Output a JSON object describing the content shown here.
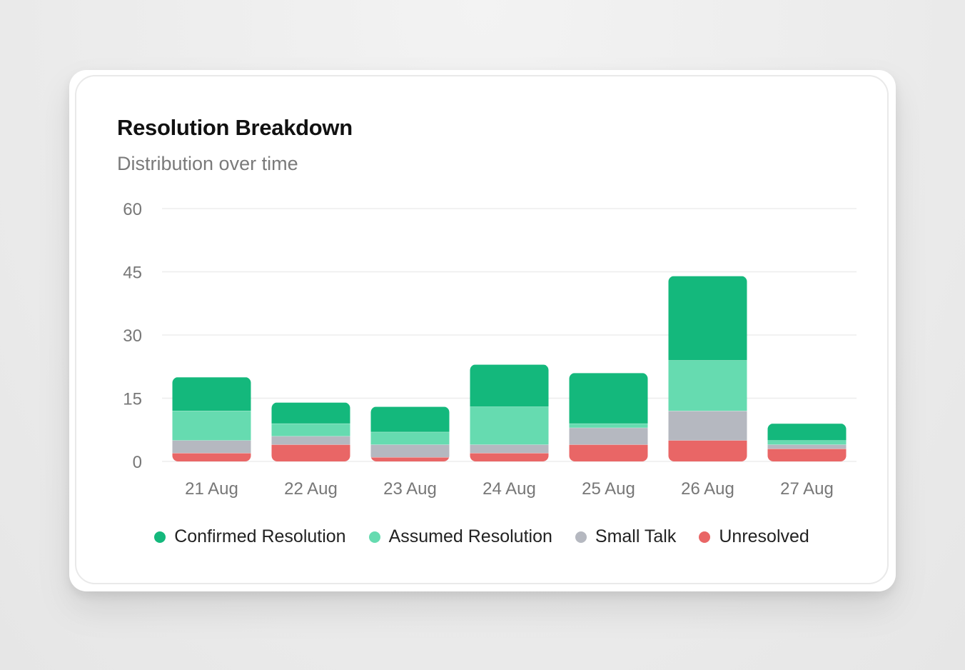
{
  "card": {
    "title": "Resolution Breakdown",
    "subtitle": "Distribution over time"
  },
  "chart_data": {
    "type": "bar",
    "stacked": true,
    "title": "Resolution Breakdown",
    "subtitle": "Distribution over time",
    "categories": [
      "21 Aug",
      "22 Aug",
      "23 Aug",
      "24 Aug",
      "25 Aug",
      "26 Aug",
      "27 Aug"
    ],
    "series": [
      {
        "name": "Unresolved",
        "color": "#e96666",
        "values": [
          2,
          4,
          1,
          2,
          4,
          5,
          3
        ]
      },
      {
        "name": "Small Talk",
        "color": "#b5b8c0",
        "values": [
          3,
          2,
          3,
          2,
          4,
          7,
          1
        ]
      },
      {
        "name": "Assumed Resolution",
        "color": "#66dbb0",
        "values": [
          7,
          3,
          3,
          9,
          1,
          12,
          1
        ]
      },
      {
        "name": "Confirmed Resolution",
        "color": "#14b87c",
        "values": [
          8,
          5,
          6,
          10,
          12,
          20,
          4
        ]
      }
    ],
    "y_ticks": [
      0,
      15,
      30,
      45,
      60
    ],
    "ylim": [
      0,
      60
    ],
    "grid": true,
    "legend_position": "bottom",
    "legend_order": [
      "Confirmed Resolution",
      "Assumed Resolution",
      "Small Talk",
      "Unresolved"
    ]
  },
  "colors": {
    "grid": "#ededed",
    "tick_text": "#777777"
  }
}
